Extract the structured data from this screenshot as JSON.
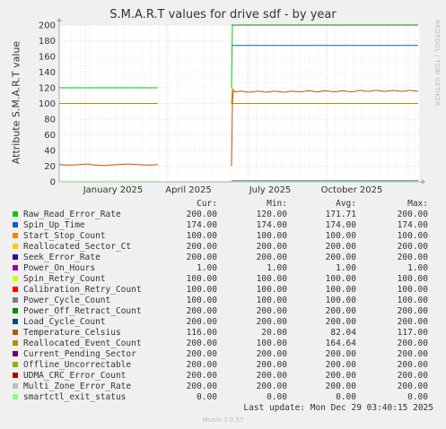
{
  "chart_data": {
    "type": "line",
    "title": "S.M.A.R.T values for drive sdf - by year",
    "ylabel": "Attribute S.M.A.R.T value",
    "ylim": [
      0,
      200
    ],
    "yticks": [
      0,
      20,
      40,
      60,
      80,
      100,
      120,
      140,
      160,
      180,
      200
    ],
    "xlabels": [
      "January 2025",
      "April 2025",
      "July 2025",
      "October 2025"
    ],
    "grid": true
  },
  "side_text": "RRDTOOL / TOBI OETIKER",
  "legend": {
    "headers": [
      "Cur:",
      "Min:",
      "Avg:",
      "Max:"
    ],
    "rows": [
      {
        "name": "Raw_Read_Error_Rate",
        "color": "#00cc00",
        "cur": "200.00",
        "min": "120.00",
        "avg": "171.71",
        "max": "200.00"
      },
      {
        "name": "Spin_Up_Time",
        "color": "#0066b3",
        "cur": "174.00",
        "min": "174.00",
        "avg": "174.00",
        "max": "174.00"
      },
      {
        "name": "Start_Stop_Count",
        "color": "#ff8000",
        "cur": "100.00",
        "min": "100.00",
        "avg": "100.00",
        "max": "100.00"
      },
      {
        "name": "Reallocated_Sector_Ct",
        "color": "#ffcc00",
        "cur": "200.00",
        "min": "200.00",
        "avg": "200.00",
        "max": "200.00"
      },
      {
        "name": "Seek_Error_Rate",
        "color": "#330099",
        "cur": "200.00",
        "min": "200.00",
        "avg": "200.00",
        "max": "200.00"
      },
      {
        "name": "Power_On_Hours",
        "color": "#990099",
        "cur": "1.00",
        "min": "1.00",
        "avg": "1.00",
        "max": "1.00"
      },
      {
        "name": "Spin_Retry_Count",
        "color": "#ccff00",
        "cur": "100.00",
        "min": "100.00",
        "avg": "100.00",
        "max": "100.00"
      },
      {
        "name": "Calibration_Retry_Count",
        "color": "#ff0000",
        "cur": "100.00",
        "min": "100.00",
        "avg": "100.00",
        "max": "100.00"
      },
      {
        "name": "Power_Cycle_Count",
        "color": "#808080",
        "cur": "100.00",
        "min": "100.00",
        "avg": "100.00",
        "max": "100.00"
      },
      {
        "name": "Power_Off_Retract_Count",
        "color": "#008f00",
        "cur": "200.00",
        "min": "200.00",
        "avg": "200.00",
        "max": "200.00"
      },
      {
        "name": "Load_Cycle_Count",
        "color": "#00487d",
        "cur": "200.00",
        "min": "200.00",
        "avg": "200.00",
        "max": "200.00"
      },
      {
        "name": "Temperature_Celsius",
        "color": "#b35a00",
        "cur": "116.00",
        "min": "20.00",
        "avg": "82.04",
        "max": "117.00"
      },
      {
        "name": "Reallocated_Event_Count",
        "color": "#b38f00",
        "cur": "200.00",
        "min": "100.00",
        "avg": "164.64",
        "max": "200.00"
      },
      {
        "name": "Current_Pending_Sector",
        "color": "#6b006b",
        "cur": "200.00",
        "min": "200.00",
        "avg": "200.00",
        "max": "200.00"
      },
      {
        "name": "Offline_Uncorrectable",
        "color": "#8fb300",
        "cur": "200.00",
        "min": "200.00",
        "avg": "200.00",
        "max": "200.00"
      },
      {
        "name": "UDMA_CRC_Error_Count",
        "color": "#b30000",
        "cur": "200.00",
        "min": "200.00",
        "avg": "200.00",
        "max": "200.00"
      },
      {
        "name": "Multi_Zone_Error_Rate",
        "color": "#bebebe",
        "cur": "200.00",
        "min": "200.00",
        "avg": "200.00",
        "max": "200.00"
      },
      {
        "name": "smartctl_exit_status",
        "color": "#80ff80",
        "cur": "0.00",
        "min": "0.00",
        "avg": "0.00",
        "max": "0.00"
      }
    ]
  },
  "last_update": "Last update: Mon Dec 29 03:40:15 2025",
  "footer": "Munin 2.0.57"
}
